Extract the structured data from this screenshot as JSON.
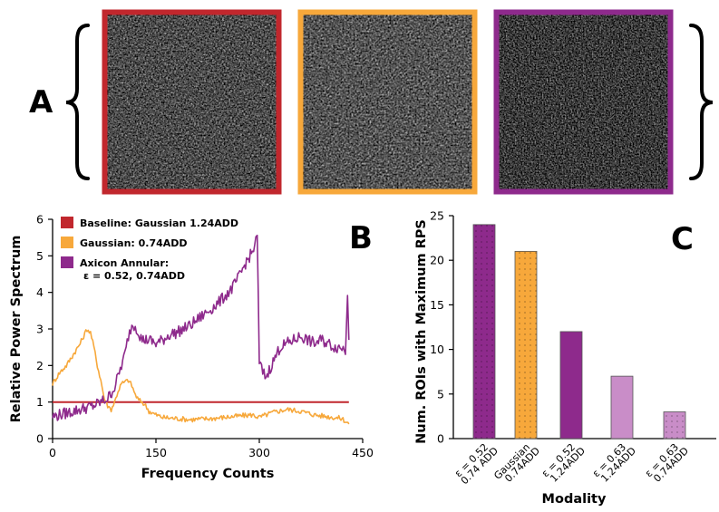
{
  "panel_labels": {
    "a": "A",
    "b": "B",
    "c": "C"
  },
  "images": [
    {
      "name": "baseline",
      "border_color": "#c1272d",
      "caption": ""
    },
    {
      "name": "gaussian",
      "border_color": "#f7a83b",
      "caption": ""
    },
    {
      "name": "axicon",
      "border_color": "#8e2a8c",
      "caption": ""
    }
  ],
  "chart_data": [
    {
      "type": "line",
      "title": "",
      "xlabel": "Frequency Counts",
      "ylabel": "Relative Power Spectrum",
      "xlim": [
        0,
        450
      ],
      "ylim": [
        0,
        6
      ],
      "xticks": [
        "0",
        "150",
        "300",
        "450"
      ],
      "yticks": [
        "0",
        "1",
        "2",
        "3",
        "4",
        "5",
        "6"
      ],
      "legend_position": "top-left",
      "series": [
        {
          "name": "Baseline: Gaussian 1.24ADD",
          "label_line2": "",
          "color": "#c1272d",
          "x": [
            0,
            430
          ],
          "y": [
            1.0,
            1.0
          ]
        },
        {
          "name": "Gaussian: 0.74ADD",
          "label_line2": "",
          "color": "#f7a83b",
          "x": [
            0,
            10,
            20,
            30,
            40,
            45,
            50,
            55,
            60,
            65,
            70,
            75,
            80,
            85,
            90,
            95,
            100,
            105,
            110,
            115,
            120,
            125,
            130,
            135,
            140,
            150,
            160,
            180,
            200,
            230,
            260,
            290,
            300,
            320,
            340,
            360,
            380,
            400,
            420,
            430
          ],
          "y": [
            1.5,
            1.8,
            2.0,
            2.3,
            2.6,
            2.8,
            3.0,
            2.9,
            2.5,
            2.0,
            1.6,
            1.1,
            0.9,
            0.8,
            1.0,
            1.3,
            1.5,
            1.55,
            1.6,
            1.45,
            1.2,
            1.05,
            1.0,
            0.9,
            0.75,
            0.65,
            0.58,
            0.55,
            0.52,
            0.55,
            0.6,
            0.65,
            0.58,
            0.72,
            0.8,
            0.75,
            0.65,
            0.6,
            0.55,
            0.4
          ]
        },
        {
          "name": "Axicon Annular:",
          "label_line2": "ε = 0.52, 0.74ADD",
          "color": "#8e2a8c",
          "x": [
            0,
            10,
            20,
            30,
            40,
            50,
            60,
            70,
            80,
            90,
            95,
            100,
            105,
            110,
            115,
            120,
            125,
            130,
            140,
            150,
            160,
            170,
            180,
            200,
            220,
            240,
            260,
            270,
            280,
            290,
            295,
            297,
            300,
            305,
            310,
            320,
            330,
            340,
            350,
            360,
            370,
            380,
            390,
            400,
            410,
            420,
            425,
            428,
            430
          ],
          "y": [
            0.6,
            0.65,
            0.7,
            0.75,
            0.8,
            0.85,
            0.9,
            1.0,
            1.1,
            1.4,
            1.7,
            2.0,
            2.3,
            2.8,
            3.1,
            3.1,
            2.9,
            2.7,
            2.7,
            2.6,
            2.7,
            2.85,
            2.9,
            3.1,
            3.4,
            3.7,
            4.1,
            4.4,
            4.8,
            5.1,
            5.4,
            5.5,
            2.1,
            1.8,
            1.7,
            2.1,
            2.5,
            2.6,
            2.7,
            2.8,
            2.7,
            2.6,
            2.7,
            2.6,
            2.5,
            2.5,
            2.4,
            4.0,
            2.7
          ]
        }
      ]
    },
    {
      "type": "bar",
      "title": "",
      "xlabel": "Modality",
      "ylabel": "Num. ROIs with Maximum RPS",
      "ylim": [
        0,
        25
      ],
      "yticks": [
        "0",
        "5",
        "10",
        "15",
        "20",
        "25"
      ],
      "categories": [
        {
          "line1": "ε = 0.52",
          "line2": "0.74 ADD"
        },
        {
          "line1": "Gaussian",
          "line2": "0.74ADD"
        },
        {
          "line1": "ε = 0.52",
          "line2": "1.24ADD"
        },
        {
          "line1": "ε = 0.63",
          "line2": "1.24ADD"
        },
        {
          "line1": "ε = 0.63",
          "line2": "0.74ADD"
        }
      ],
      "values": [
        24,
        21,
        12,
        7,
        3
      ],
      "colors": [
        "#8e2a8c",
        "#f7a83b",
        "#8e2a8c",
        "#c98dc8",
        "#c98dc8"
      ],
      "dotted": [
        true,
        true,
        false,
        false,
        true
      ]
    }
  ]
}
